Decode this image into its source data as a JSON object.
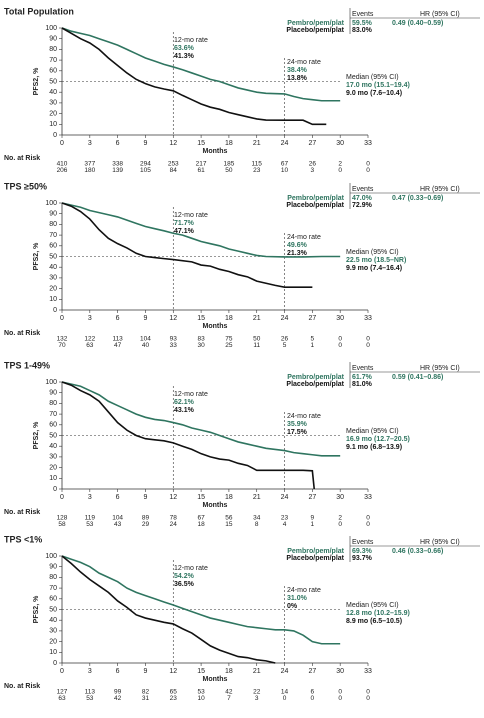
{
  "chart_data": [
    {
      "type": "line",
      "title": "Total Population",
      "ylabel": "PFS2, %",
      "xlabel": "Months",
      "xlim": [
        0,
        33
      ],
      "ylim": [
        0,
        100
      ],
      "xticks": [
        0,
        3,
        6,
        9,
        12,
        15,
        18,
        21,
        24,
        27,
        30,
        33
      ],
      "yticks": [
        0,
        10,
        20,
        30,
        40,
        50,
        60,
        70,
        80,
        90,
        100
      ],
      "series": [
        {
          "name": "Pembro/pem/plat",
          "color": "#2f7560",
          "x": [
            0,
            1,
            2,
            3,
            4,
            5,
            6,
            7,
            8,
            9,
            10,
            11,
            12,
            13,
            14,
            15,
            16,
            17,
            18,
            19,
            20,
            21,
            22,
            24,
            25,
            26,
            27,
            28,
            30
          ],
          "values": [
            100,
            97,
            95,
            93,
            90,
            87,
            84,
            80,
            76,
            72,
            69,
            66,
            63.6,
            61,
            58,
            55,
            52,
            50,
            47,
            44,
            42,
            40,
            39,
            38.4,
            36,
            34,
            33,
            32,
            32
          ]
        },
        {
          "name": "Placebo/pem/plat",
          "color": "#111111",
          "x": [
            0,
            1,
            2,
            3,
            4,
            5,
            6,
            7,
            8,
            9,
            10,
            11,
            12,
            13,
            14,
            15,
            16,
            17,
            18,
            19,
            20,
            21,
            22,
            24,
            26,
            27,
            28.5
          ],
          "values": [
            100,
            95,
            90,
            86,
            80,
            72,
            65,
            58,
            52,
            48,
            45,
            43,
            41.3,
            37,
            33,
            29,
            26,
            24,
            21,
            19,
            17,
            15,
            14,
            13.8,
            13.8,
            10,
            10
          ]
        }
      ],
      "rate_12": {
        "label": "12-mo rate",
        "values": [
          "63.6%",
          "41.3%"
        ]
      },
      "rate_24": {
        "label": "24-mo rate",
        "values": [
          "38.4%",
          "13.8%"
        ]
      },
      "events": {
        "header": "Events",
        "values": [
          "59.5%",
          "83.0%"
        ]
      },
      "hr": {
        "header": "HR (95% CI)",
        "value": "0.49 (0.40–0.59)"
      },
      "median": {
        "label": "Median (95% CI)",
        "values": [
          "17.0 mo (15.1–19.4)",
          "9.0 mo (7.6–10.4)"
        ]
      },
      "risk": {
        "label": "No. at Risk",
        "rows": [
          [
            410,
            377,
            338,
            294,
            253,
            217,
            185,
            115,
            67,
            26,
            2,
            0
          ],
          [
            206,
            180,
            139,
            105,
            84,
            61,
            50,
            23,
            10,
            3,
            0,
            0
          ]
        ]
      }
    },
    {
      "type": "line",
      "title": "TPS ≥50%",
      "ylabel": "PFS2, %",
      "xlabel": "Months",
      "xlim": [
        0,
        33
      ],
      "ylim": [
        0,
        100
      ],
      "xticks": [
        0,
        3,
        6,
        9,
        12,
        15,
        18,
        21,
        24,
        27,
        30,
        33
      ],
      "yticks": [
        0,
        10,
        20,
        30,
        40,
        50,
        60,
        70,
        80,
        90,
        100
      ],
      "series": [
        {
          "name": "Pembro/pem/plat",
          "color": "#2f7560",
          "x": [
            0,
            2,
            3,
            4,
            5,
            6,
            7,
            8,
            9,
            10,
            11,
            12,
            13,
            14,
            15,
            16,
            17,
            18,
            19,
            20,
            21,
            22,
            24,
            26,
            28,
            30
          ],
          "values": [
            100,
            96,
            93,
            91,
            89,
            87,
            84,
            81,
            78,
            76,
            74,
            71.7,
            70,
            67,
            64,
            62,
            60,
            57,
            55,
            53,
            51,
            50,
            49.6,
            49.6,
            50,
            50
          ]
        },
        {
          "name": "Placebo/pem/plat",
          "color": "#111111",
          "x": [
            0,
            1,
            2,
            3,
            4,
            5,
            6,
            7,
            8,
            9,
            10,
            11,
            12,
            14,
            15,
            16,
            17,
            18,
            19,
            20,
            21,
            22,
            23,
            24,
            27
          ],
          "values": [
            100,
            97,
            92,
            85,
            75,
            67,
            62,
            58,
            53,
            50,
            49,
            48,
            47.1,
            45,
            42,
            41,
            38,
            36,
            33,
            31,
            27,
            25,
            23,
            21.3,
            21.3
          ]
        }
      ],
      "rate_12": {
        "label": "12-mo rate",
        "values": [
          "71.7%",
          "47.1%"
        ]
      },
      "rate_24": {
        "label": "24-mo rate",
        "values": [
          "49.6%",
          "21.3%"
        ]
      },
      "events": {
        "header": "Events",
        "values": [
          "47.0%",
          "72.9%"
        ]
      },
      "hr": {
        "header": "HR (95% CI)",
        "value": "0.47 (0.33–0.69)"
      },
      "median": {
        "label": "Median (95% CI)",
        "values": [
          "22.5 mo (18.5–NR)",
          "9.9 mo (7.4–16.4)"
        ]
      },
      "risk": {
        "label": "No. at Risk",
        "rows": [
          [
            132,
            122,
            113,
            104,
            93,
            83,
            75,
            50,
            26,
            5,
            0,
            0
          ],
          [
            70,
            63,
            47,
            40,
            33,
            30,
            25,
            11,
            5,
            1,
            0,
            0
          ]
        ]
      }
    },
    {
      "type": "line",
      "title": "TPS 1-49%",
      "ylabel": "PFS2, %",
      "xlabel": "Months",
      "xlim": [
        0,
        33
      ],
      "ylim": [
        0,
        100
      ],
      "xticks": [
        0,
        3,
        6,
        9,
        12,
        15,
        18,
        21,
        24,
        27,
        30,
        33
      ],
      "yticks": [
        0,
        10,
        20,
        30,
        40,
        50,
        60,
        70,
        80,
        90,
        100
      ],
      "series": [
        {
          "name": "Pembro/pem/plat",
          "color": "#2f7560",
          "x": [
            0,
            1,
            2,
            3,
            4,
            5,
            6,
            7,
            8,
            9,
            10,
            11,
            12,
            13,
            14,
            15,
            16,
            17,
            18,
            19,
            20,
            21,
            22,
            23,
            24,
            25,
            26,
            27,
            28,
            30
          ],
          "values": [
            100,
            98,
            96,
            92,
            88,
            82,
            78,
            74,
            70,
            67,
            65,
            64,
            62.1,
            60,
            57,
            55,
            53,
            50,
            47,
            44,
            42,
            40,
            38,
            37,
            35.9,
            34,
            33,
            32,
            31,
            31
          ]
        },
        {
          "name": "Placebo/pem/plat",
          "color": "#111111",
          "x": [
            0,
            1,
            2,
            3,
            4,
            5,
            6,
            7,
            8,
            9,
            10,
            11,
            12,
            13,
            14,
            15,
            16,
            17,
            18,
            19,
            20,
            21,
            24,
            26,
            27,
            27.2
          ],
          "values": [
            100,
            97,
            92,
            88,
            82,
            72,
            62,
            55,
            50,
            47,
            46,
            45,
            43.1,
            40,
            37,
            33,
            30,
            28,
            27,
            24,
            22,
            17.5,
            17.5,
            17.5,
            17,
            0
          ]
        }
      ],
      "rate_12": {
        "label": "12-mo rate",
        "values": [
          "62.1%",
          "43.1%"
        ]
      },
      "rate_24": {
        "label": "24-mo rate",
        "values": [
          "35.9%",
          "17.5%"
        ]
      },
      "events": {
        "header": "Events",
        "values": [
          "61.7%",
          "81.0%"
        ]
      },
      "hr": {
        "header": "HR (95% CI)",
        "value": "0.59 (0.41–0.86)"
      },
      "median": {
        "label": "Median (95% CI)",
        "values": [
          "16.9 mo (12.7–20.5)",
          "9.1 mo (6.8–13.9)"
        ]
      },
      "risk": {
        "label": "No. at Risk",
        "rows": [
          [
            128,
            119,
            104,
            89,
            78,
            67,
            56,
            34,
            23,
            9,
            2,
            0
          ],
          [
            58,
            53,
            43,
            29,
            24,
            18,
            15,
            8,
            4,
            1,
            0,
            0
          ]
        ]
      }
    },
    {
      "type": "line",
      "title": "TPS <1%",
      "ylabel": "PFS2, %",
      "xlabel": "Months",
      "xlim": [
        0,
        33
      ],
      "ylim": [
        0,
        100
      ],
      "xticks": [
        0,
        3,
        6,
        9,
        12,
        15,
        18,
        21,
        24,
        27,
        30,
        33
      ],
      "yticks": [
        0,
        10,
        20,
        30,
        40,
        50,
        60,
        70,
        80,
        90,
        100
      ],
      "series": [
        {
          "name": "Pembro/pem/plat",
          "color": "#2f7560",
          "x": [
            0,
            1,
            2,
            3,
            4,
            5,
            6,
            7,
            8,
            9,
            10,
            11,
            12,
            13,
            14,
            15,
            16,
            17,
            18,
            19,
            20,
            21,
            22,
            23,
            24,
            25,
            26,
            27,
            28,
            29,
            30
          ],
          "values": [
            100,
            97,
            94,
            90,
            84,
            80,
            76,
            70,
            66,
            63,
            60,
            57,
            54.2,
            51,
            48,
            45,
            42,
            40,
            38,
            36,
            34,
            33,
            32,
            31,
            31,
            30,
            26,
            20,
            18,
            18,
            18
          ]
        },
        {
          "name": "Placebo/pem/plat",
          "color": "#111111",
          "x": [
            0,
            1,
            2,
            3,
            4,
            5,
            6,
            7,
            8,
            9,
            10,
            11,
            12,
            13,
            14,
            15,
            16,
            17,
            18,
            19,
            20,
            21,
            22,
            23
          ],
          "values": [
            100,
            93,
            85,
            78,
            72,
            66,
            58,
            52,
            45,
            42,
            40,
            38,
            36.5,
            32,
            28,
            22,
            16,
            12,
            9,
            6,
            5,
            3,
            2,
            0
          ]
        }
      ],
      "rate_12": {
        "label": "12-mo rate",
        "values": [
          "54.2%",
          "36.5%"
        ]
      },
      "rate_24": {
        "label": "24-mo rate",
        "values": [
          "31.0%",
          "0%"
        ]
      },
      "events": {
        "header": "Events",
        "values": [
          "69.3%",
          "93.7%"
        ]
      },
      "hr": {
        "header": "HR (95% CI)",
        "value": "0.46 (0.33–0.66)"
      },
      "median": {
        "label": "Median (95% CI)",
        "values": [
          "12.8 mo (10.2–15.9)",
          "8.9 mo (6.5–10.5)"
        ]
      },
      "risk": {
        "label": "No. at Risk",
        "rows": [
          [
            127,
            113,
            99,
            82,
            65,
            53,
            42,
            22,
            14,
            6,
            0,
            0
          ],
          [
            63,
            53,
            42,
            31,
            23,
            10,
            7,
            3,
            0,
            0,
            0,
            0
          ]
        ]
      }
    }
  ]
}
